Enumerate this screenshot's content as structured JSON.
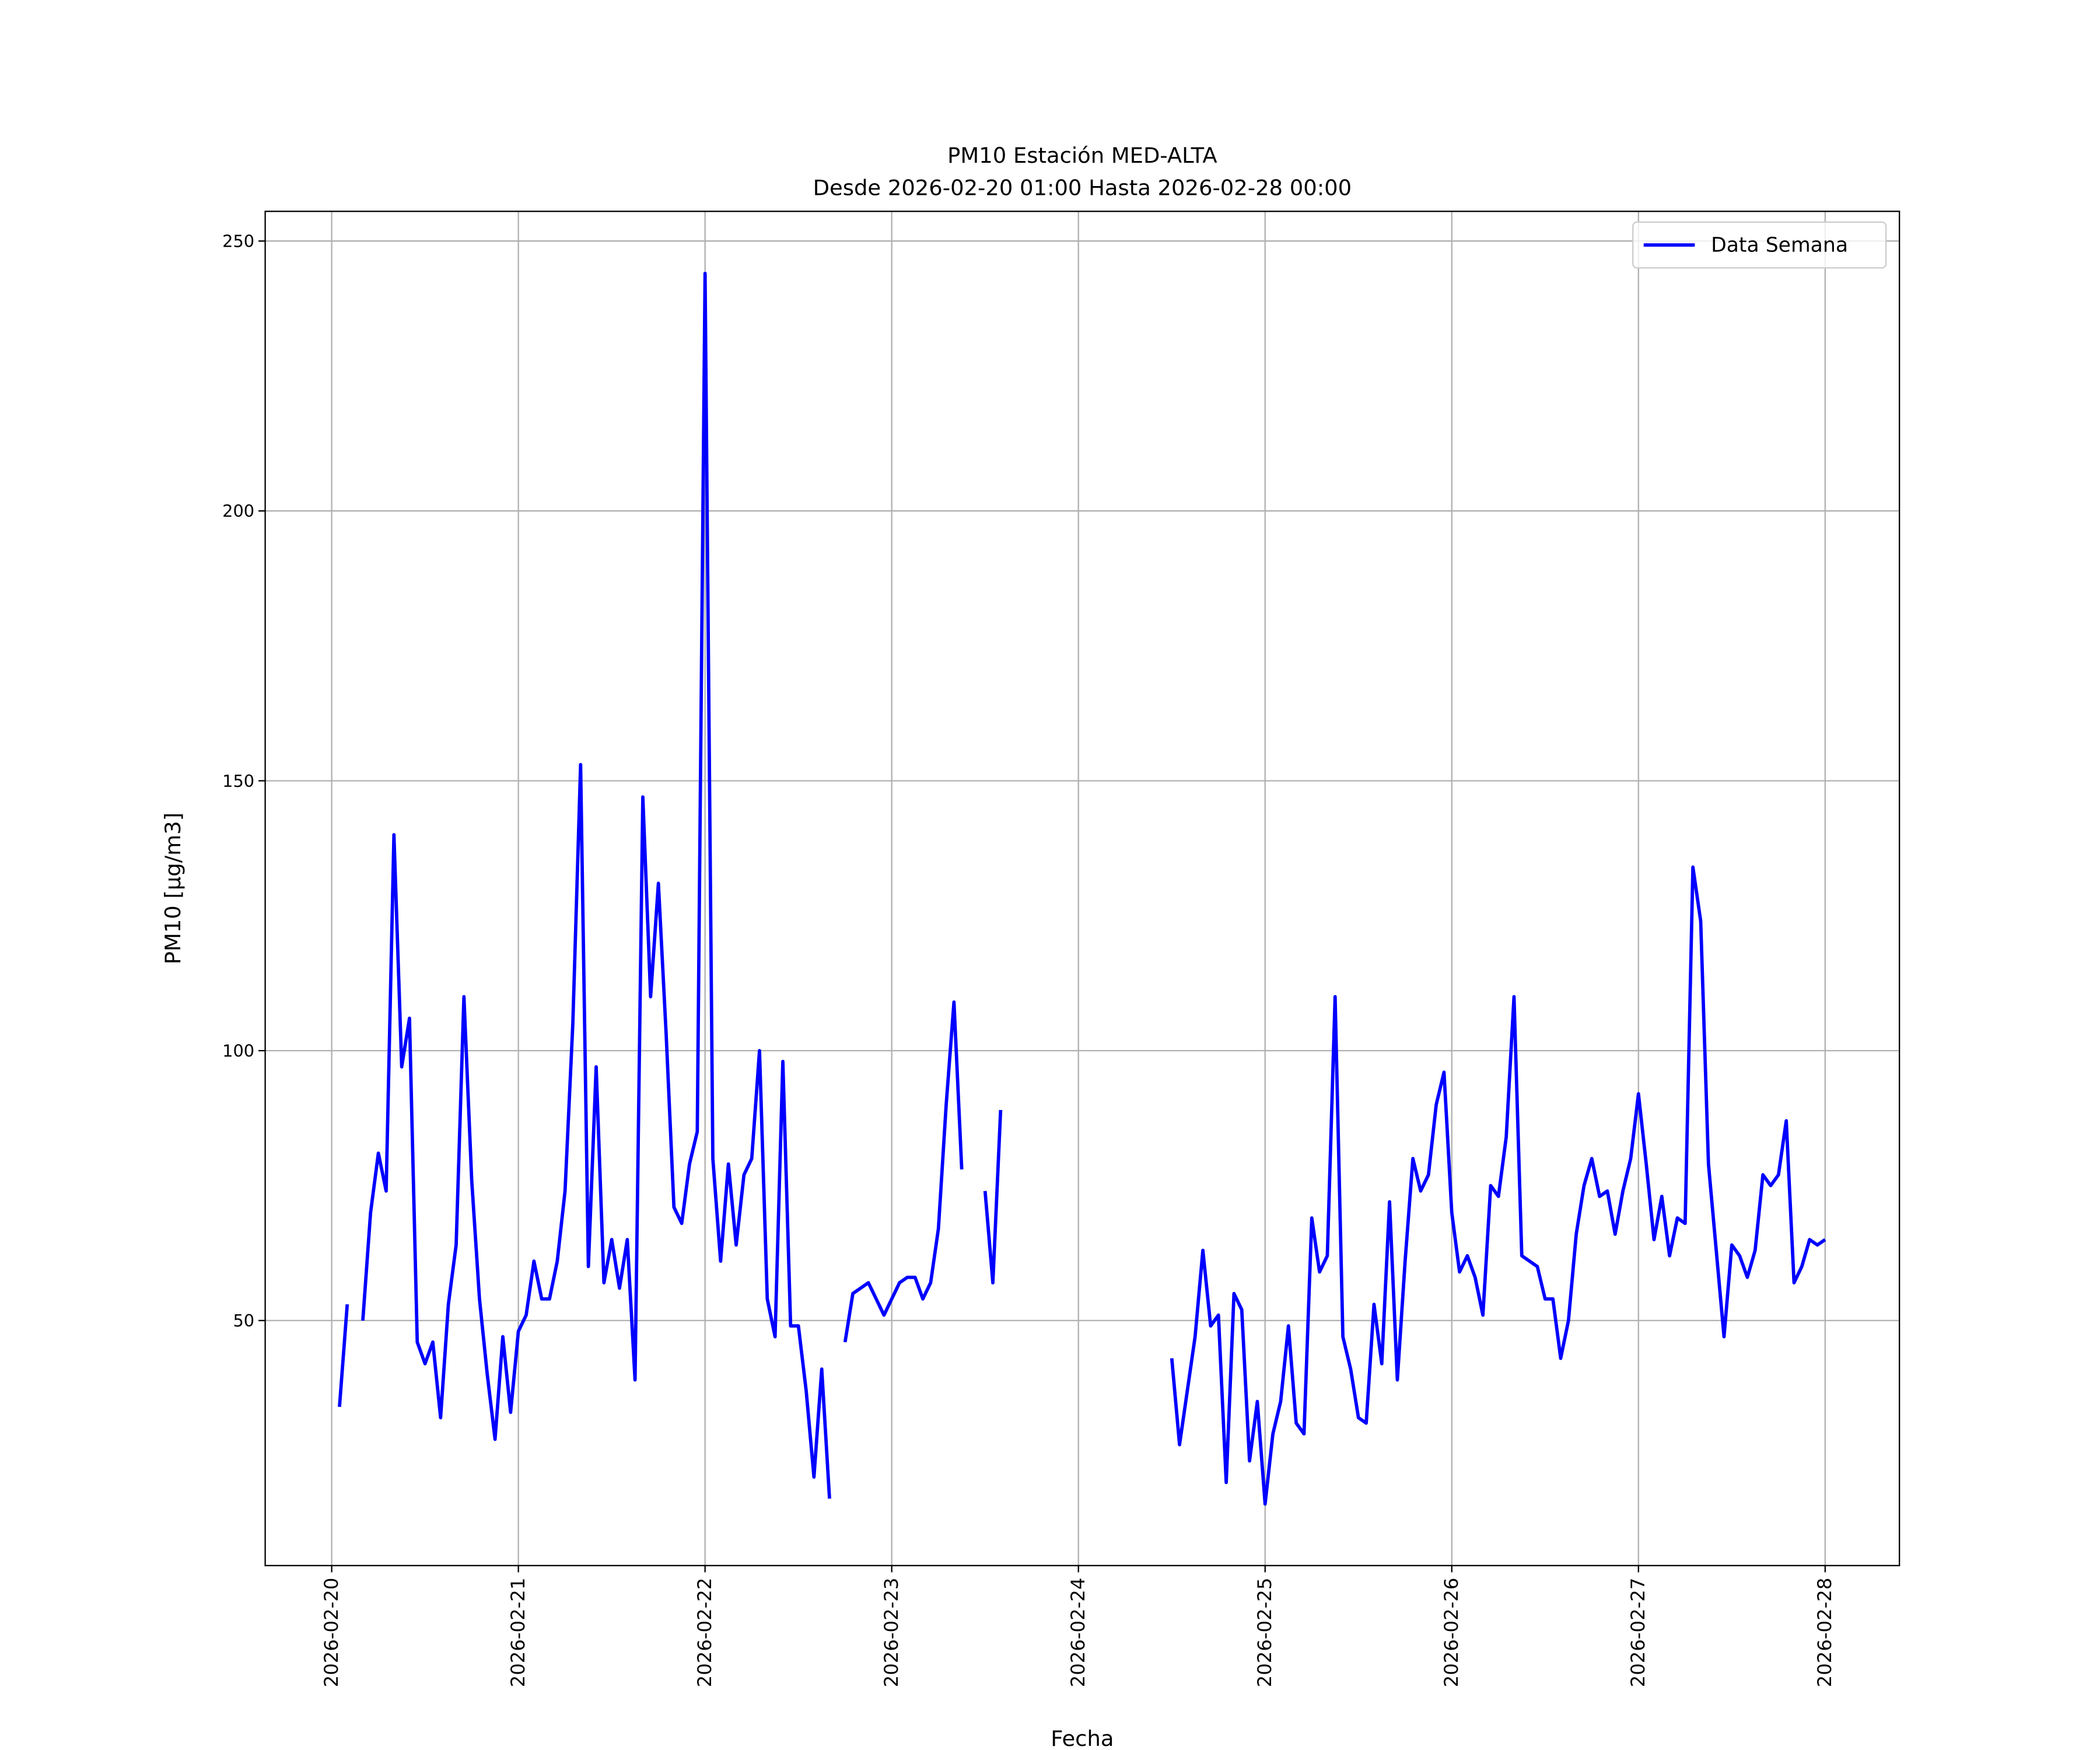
{
  "chart_data": {
    "type": "line",
    "title": "PM10 Estación MED-ALTA",
    "subtitle": "Desde 2026-02-20 01:00 Hasta 2026-02-28 00:00",
    "xlabel": "Fecha",
    "ylabel": "PM10 [μg/m3]",
    "x": [
      "2026-02-20 01:00",
      "2026-02-20 02:00",
      "2026-02-20 03:00",
      "2026-02-20 04:00",
      "2026-02-20 05:00",
      "2026-02-20 06:00",
      "2026-02-20 07:00",
      "2026-02-20 08:00",
      "2026-02-20 09:00",
      "2026-02-20 10:00",
      "2026-02-20 11:00",
      "2026-02-20 12:00",
      "2026-02-20 13:00",
      "2026-02-20 14:00",
      "2026-02-20 15:00",
      "2026-02-20 16:00",
      "2026-02-20 17:00",
      "2026-02-20 18:00",
      "2026-02-20 19:00",
      "2026-02-20 20:00",
      "2026-02-20 21:00",
      "2026-02-20 22:00",
      "2026-02-20 23:00",
      "2026-02-21 00:00",
      "2026-02-21 01:00",
      "2026-02-21 02:00",
      "2026-02-21 03:00",
      "2026-02-21 04:00",
      "2026-02-21 05:00",
      "2026-02-21 06:00",
      "2026-02-21 07:00",
      "2026-02-21 08:00",
      "2026-02-21 09:00",
      "2026-02-21 10:00",
      "2026-02-21 11:00",
      "2026-02-21 12:00",
      "2026-02-21 13:00",
      "2026-02-21 14:00",
      "2026-02-21 15:00",
      "2026-02-21 16:00",
      "2026-02-21 17:00",
      "2026-02-21 18:00",
      "2026-02-21 19:00",
      "2026-02-21 20:00",
      "2026-02-21 21:00",
      "2026-02-21 22:00",
      "2026-02-21 23:00",
      "2026-02-22 00:00",
      "2026-02-22 01:00",
      "2026-02-22 02:00",
      "2026-02-22 03:00",
      "2026-02-22 04:00",
      "2026-02-22 05:00",
      "2026-02-22 06:00",
      "2026-02-22 07:00",
      "2026-02-22 08:00",
      "2026-02-22 09:00",
      "2026-02-22 10:00",
      "2026-02-22 11:00",
      "2026-02-22 12:00",
      "2026-02-22 13:00",
      "2026-02-22 14:00",
      "2026-02-22 15:00",
      "2026-02-22 16:00",
      "2026-02-22 17:00",
      "2026-02-22 18:00",
      "2026-02-22 19:00",
      "2026-02-22 20:00",
      "2026-02-22 21:00",
      "2026-02-22 22:00",
      "2026-02-22 23:00",
      "2026-02-23 00:00",
      "2026-02-23 01:00",
      "2026-02-23 02:00",
      "2026-02-23 03:00",
      "2026-02-23 04:00",
      "2026-02-23 05:00",
      "2026-02-23 06:00",
      "2026-02-23 07:00",
      "2026-02-23 08:00",
      "2026-02-23 09:00",
      "2026-02-23 10:00",
      "2026-02-23 11:00",
      "2026-02-23 12:00",
      "2026-02-23 13:00",
      "2026-02-23 14:00",
      "2026-02-23 15:00",
      "2026-02-23 16:00",
      "2026-02-23 17:00",
      "2026-02-23 18:00",
      "2026-02-23 19:00",
      "2026-02-23 20:00",
      "2026-02-23 21:00",
      "2026-02-23 22:00",
      "2026-02-23 23:00",
      "2026-02-24 00:00",
      "2026-02-24 01:00",
      "2026-02-24 02:00",
      "2026-02-24 03:00",
      "2026-02-24 04:00",
      "2026-02-24 05:00",
      "2026-02-24 06:00",
      "2026-02-24 07:00",
      "2026-02-24 08:00",
      "2026-02-24 09:00",
      "2026-02-24 10:00",
      "2026-02-24 11:00",
      "2026-02-24 12:00",
      "2026-02-24 13:00",
      "2026-02-24 14:00",
      "2026-02-24 15:00",
      "2026-02-24 16:00",
      "2026-02-24 17:00",
      "2026-02-24 18:00",
      "2026-02-24 19:00",
      "2026-02-24 20:00",
      "2026-02-24 21:00",
      "2026-02-24 22:00",
      "2026-02-24 23:00",
      "2026-02-25 00:00",
      "2026-02-25 01:00",
      "2026-02-25 02:00",
      "2026-02-25 03:00",
      "2026-02-25 04:00",
      "2026-02-25 05:00",
      "2026-02-25 06:00",
      "2026-02-25 07:00",
      "2026-02-25 08:00",
      "2026-02-25 09:00",
      "2026-02-25 10:00",
      "2026-02-25 11:00",
      "2026-02-25 12:00",
      "2026-02-25 13:00",
      "2026-02-25 14:00",
      "2026-02-25 15:00",
      "2026-02-25 16:00",
      "2026-02-25 17:00",
      "2026-02-25 18:00",
      "2026-02-25 19:00",
      "2026-02-25 20:00",
      "2026-02-25 21:00",
      "2026-02-25 22:00",
      "2026-02-25 23:00",
      "2026-02-26 00:00",
      "2026-02-26 01:00",
      "2026-02-26 02:00",
      "2026-02-26 03:00",
      "2026-02-26 04:00",
      "2026-02-26 05:00",
      "2026-02-26 06:00",
      "2026-02-26 07:00",
      "2026-02-26 08:00",
      "2026-02-26 09:00",
      "2026-02-26 10:00",
      "2026-02-26 11:00",
      "2026-02-26 12:00",
      "2026-02-26 13:00",
      "2026-02-26 14:00",
      "2026-02-26 15:00",
      "2026-02-26 16:00",
      "2026-02-26 17:00",
      "2026-02-26 18:00",
      "2026-02-26 19:00",
      "2026-02-26 20:00",
      "2026-02-26 21:00",
      "2026-02-26 22:00",
      "2026-02-26 23:00",
      "2026-02-27 00:00",
      "2026-02-27 01:00",
      "2026-02-27 02:00",
      "2026-02-27 03:00",
      "2026-02-27 04:00",
      "2026-02-27 05:00",
      "2026-02-27 06:00",
      "2026-02-27 07:00",
      "2026-02-27 08:00",
      "2026-02-27 09:00",
      "2026-02-27 10:00",
      "2026-02-27 11:00",
      "2026-02-27 12:00",
      "2026-02-27 13:00",
      "2026-02-27 14:00",
      "2026-02-27 15:00",
      "2026-02-27 16:00",
      "2026-02-27 17:00",
      "2026-02-27 18:00",
      "2026-02-27 19:00",
      "2026-02-27 20:00",
      "2026-02-27 21:00",
      "2026-02-27 22:00",
      "2026-02-27 23:00",
      "2026-02-28 00:00"
    ],
    "series": [
      {
        "name": "Data Semana",
        "color": "#0000ff",
        "values": [
          34,
          53,
          null,
          50,
          70,
          81,
          74,
          140,
          97,
          106,
          46,
          42,
          46,
          32,
          53,
          64,
          110,
          76,
          54,
          40,
          28,
          47,
          33,
          48,
          51,
          61,
          54,
          54,
          61,
          74,
          105,
          153,
          60,
          97,
          57,
          65,
          56,
          65,
          39,
          147,
          110,
          131,
          103,
          71,
          68,
          79,
          85,
          244,
          80,
          61,
          79,
          64,
          77,
          80,
          100,
          54,
          47,
          98,
          49,
          49,
          37,
          21,
          41,
          17,
          null,
          46,
          55,
          56,
          57,
          54,
          51,
          54,
          57,
          58,
          58,
          54,
          57,
          67,
          90,
          109,
          78,
          null,
          null,
          74,
          57,
          89,
          null,
          null,
          null,
          null,
          null,
          null,
          null,
          null,
          null,
          null,
          null,
          null,
          null,
          null,
          null,
          null,
          null,
          null,
          null,
          null,
          null,
          43,
          27,
          37,
          47,
          63,
          49,
          51,
          20,
          55,
          52,
          24,
          35,
          16,
          29,
          35,
          49,
          31,
          29,
          69,
          59,
          62,
          110,
          47,
          41,
          32,
          31,
          53,
          42,
          72,
          39,
          61,
          80,
          74,
          77,
          90,
          96,
          70,
          59,
          62,
          58,
          51,
          75,
          73,
          84,
          110,
          62,
          61,
          60,
          54,
          54,
          43,
          50,
          66,
          75,
          80,
          73,
          74,
          66,
          74,
          80,
          92,
          79,
          65,
          73,
          62,
          69,
          68,
          134,
          124,
          79,
          63,
          47,
          64,
          62,
          58,
          63,
          77,
          75,
          77,
          87,
          57,
          60,
          65,
          64,
          65
        ]
      }
    ],
    "xlim": [
      "2026-02-19 15:27",
      "2026-02-28 09:33"
    ],
    "xticks": [
      "2026-02-20",
      "2026-02-21",
      "2026-02-22",
      "2026-02-23",
      "2026-02-24",
      "2026-02-25",
      "2026-02-26",
      "2026-02-27",
      "2026-02-28"
    ],
    "ylim": [
      4.6,
      255.5
    ],
    "yticks": [
      50,
      100,
      150,
      200,
      250
    ],
    "grid": true,
    "legend": "upper right"
  }
}
